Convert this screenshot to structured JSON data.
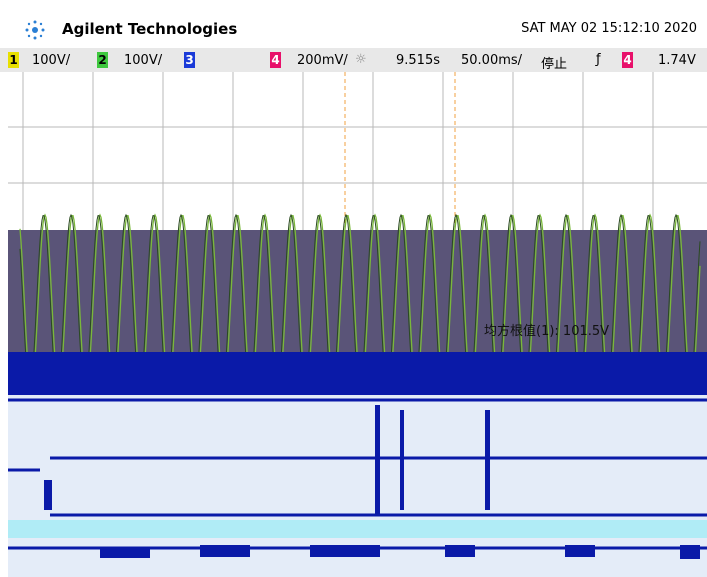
{
  "header": {
    "brand": "Agilent Technologies",
    "datetime": "SAT MAY 02 15:12:10 2020"
  },
  "channel_bar": {
    "ch1": "1",
    "ch1_scale": "100V/",
    "ch2": "2",
    "ch2_scale": "100V/",
    "ch3": "3",
    "ch4": "4",
    "ch4_scale": "200mV/",
    "delay": "9.515s",
    "timebase": "50.00ms/",
    "run_state": "停止",
    "trigger_source": "4",
    "trigger_level": "1.74V"
  },
  "measurements": {
    "rms1": "均方根值(1): 101.5V"
  }
}
